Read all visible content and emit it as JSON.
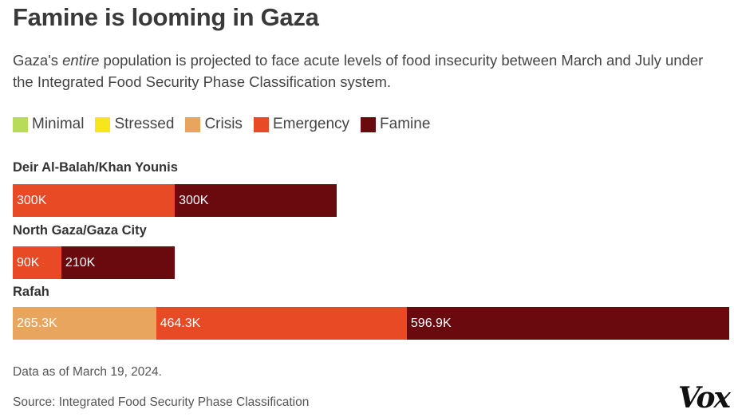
{
  "chart_data": {
    "type": "bar",
    "orientation": "horizontal",
    "stacked": true,
    "title": "Famine is looming in Gaza",
    "subtitle_parts": [
      "Gaza's ",
      "entire",
      " population is projected to face acute levels of food insecurity between March and July under the Integrated Food Security Phase Classification system."
    ],
    "legend": [
      {
        "label": "Minimal",
        "color": "#b8dc5a"
      },
      {
        "label": "Stressed",
        "color": "#f7e51d"
      },
      {
        "label": "Crisis",
        "color": "#e8a55e"
      },
      {
        "label": "Emergency",
        "color": "#e84a25"
      },
      {
        "label": "Famine",
        "color": "#6b0a0e"
      }
    ],
    "categories": [
      "Deir Al-Balah/Khan Younis",
      "North Gaza/Gaza City",
      "Rafah"
    ],
    "series": [
      {
        "name": "Crisis",
        "color": "#e8a55e",
        "values": [
          0,
          0,
          265300
        ],
        "labels": [
          "",
          "",
          "265.3K"
        ]
      },
      {
        "name": "Emergency",
        "color": "#e84a25",
        "values": [
          300000,
          90000,
          464300
        ],
        "labels": [
          "300K",
          "90K",
          "464.3K"
        ]
      },
      {
        "name": "Famine",
        "color": "#6b0a0e",
        "values": [
          300000,
          210000,
          596900
        ],
        "labels": [
          "300K",
          "210K",
          "596.9K"
        ]
      }
    ],
    "xlim": [
      0,
      1326500
    ],
    "notes": [
      "Data as of March 19, 2024.",
      "Source: Integrated Food Security Phase Classification"
    ]
  },
  "brand": {
    "logo_text": "Vox"
  }
}
